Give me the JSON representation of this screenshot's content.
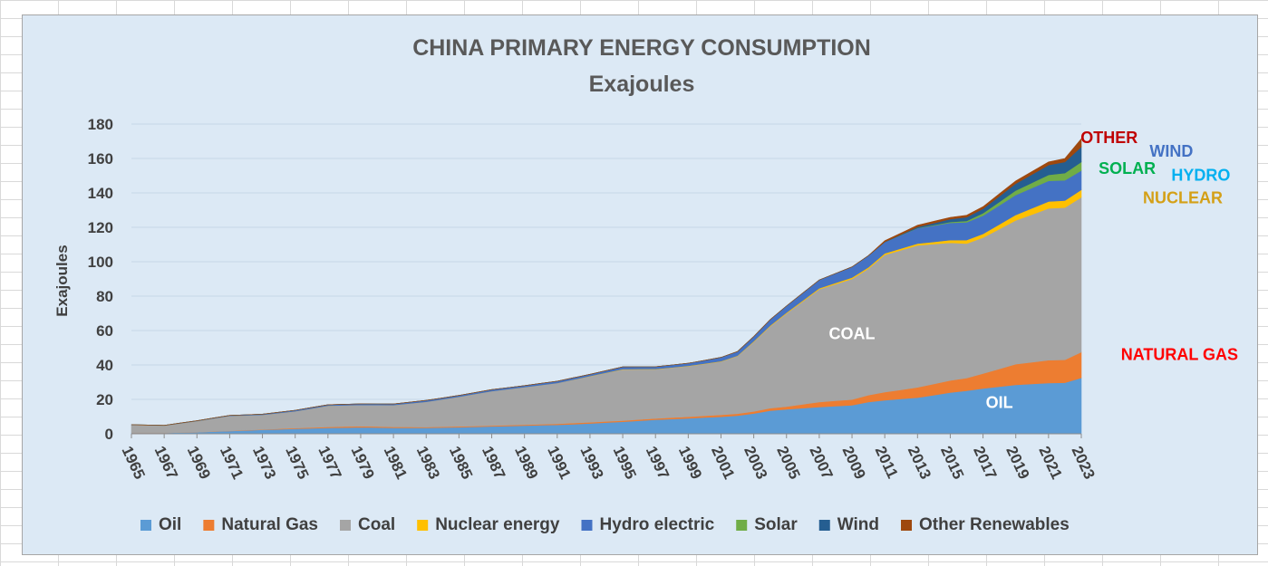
{
  "chart_data": {
    "type": "area",
    "stacked": true,
    "title": "CHINA PRIMARY ENERGY CONSUMPTION",
    "subtitle": "Exajoules",
    "xlabel": "",
    "ylabel": "Exajoules",
    "ylim": [
      0,
      180
    ],
    "yticks": [
      0,
      20,
      40,
      60,
      80,
      100,
      120,
      140,
      160,
      180
    ],
    "xlim": [
      1965,
      2023
    ],
    "xticks": [
      1965,
      1967,
      1969,
      1971,
      1973,
      1975,
      1977,
      1979,
      1981,
      1983,
      1985,
      1987,
      1989,
      1991,
      1993,
      1995,
      1997,
      1999,
      2001,
      2003,
      2005,
      2007,
      2009,
      2011,
      2013,
      2015,
      2017,
      2019,
      2021,
      2023
    ],
    "grid": "horizontal",
    "legend_position": "bottom",
    "series_cumulative_keys": [
      {
        "year": 1965,
        "c": [
          0.6,
          0.6,
          5.2,
          5.2,
          5.3,
          5.3,
          5.3,
          5.3
        ]
      },
      {
        "year": 1967,
        "c": [
          0.6,
          0.6,
          4.8,
          4.8,
          4.9,
          4.9,
          4.9,
          4.9
        ]
      },
      {
        "year": 1969,
        "c": [
          0.9,
          0.9,
          7.4,
          7.4,
          7.6,
          7.6,
          7.6,
          7.6
        ]
      },
      {
        "year": 1971,
        "c": [
          1.6,
          1.7,
          10.4,
          10.4,
          10.7,
          10.7,
          10.7,
          10.7
        ]
      },
      {
        "year": 1973,
        "c": [
          2.3,
          2.5,
          11.0,
          11.0,
          11.4,
          11.4,
          11.4,
          11.4
        ]
      },
      {
        "year": 1975,
        "c": [
          2.9,
          3.3,
          13.1,
          13.1,
          13.7,
          13.7,
          13.7,
          13.7
        ]
      },
      {
        "year": 1977,
        "c": [
          3.4,
          4.0,
          16.3,
          16.3,
          16.9,
          16.9,
          16.9,
          16.9
        ]
      },
      {
        "year": 1979,
        "c": [
          3.8,
          4.4,
          16.8,
          16.8,
          17.4,
          17.4,
          17.4,
          17.4
        ]
      },
      {
        "year": 1981,
        "c": [
          3.5,
          4.0,
          16.7,
          16.7,
          17.3,
          17.3,
          17.3,
          17.3
        ]
      },
      {
        "year": 1983,
        "c": [
          3.5,
          3.9,
          18.6,
          18.6,
          19.4,
          19.4,
          19.4,
          19.4
        ]
      },
      {
        "year": 1985,
        "c": [
          3.8,
          4.3,
          21.5,
          21.5,
          22.3,
          22.3,
          22.3,
          22.3
        ]
      },
      {
        "year": 1987,
        "c": [
          4.3,
          4.8,
          24.8,
          24.8,
          25.7,
          25.7,
          25.7,
          25.7
        ]
      },
      {
        "year": 1989,
        "c": [
          4.8,
          5.3,
          27.1,
          27.1,
          28.0,
          28.0,
          28.0,
          28.0
        ]
      },
      {
        "year": 1991,
        "c": [
          5.2,
          5.8,
          29.5,
          29.5,
          30.6,
          30.6,
          30.6,
          30.6
        ]
      },
      {
        "year": 1993,
        "c": [
          6.0,
          6.7,
          33.4,
          33.6,
          34.6,
          34.6,
          34.6,
          34.6
        ]
      },
      {
        "year": 1995,
        "c": [
          7.0,
          7.7,
          37.4,
          37.6,
          38.9,
          38.9,
          38.9,
          38.9
        ]
      },
      {
        "year": 1997,
        "c": [
          8.2,
          8.9,
          37.5,
          37.7,
          39.0,
          39.0,
          39.0,
          39.0
        ]
      },
      {
        "year": 1999,
        "c": [
          9.0,
          9.9,
          39.3,
          39.5,
          41.0,
          41.0,
          41.0,
          41.0
        ]
      },
      {
        "year": 2001,
        "c": [
          9.9,
          11.0,
          42.0,
          42.2,
          44.4,
          44.4,
          44.4,
          44.4
        ]
      },
      {
        "year": 2002,
        "c": [
          10.6,
          11.7,
          45.2,
          45.4,
          47.8,
          47.8,
          47.8,
          47.8
        ]
      },
      {
        "year": 2003,
        "c": [
          11.8,
          13.0,
          53.5,
          53.8,
          56.5,
          56.5,
          56.5,
          56.5
        ]
      },
      {
        "year": 2004,
        "c": [
          13.5,
          14.9,
          62.5,
          62.9,
          66.3,
          66.3,
          66.3,
          66.3
        ]
      },
      {
        "year": 2005,
        "c": [
          14.2,
          15.8,
          70.0,
          70.5,
          74.3,
          74.3,
          74.3,
          74.3
        ]
      },
      {
        "year": 2007,
        "c": [
          15.6,
          18.5,
          84.0,
          84.6,
          89.4,
          89.4,
          89.4,
          89.4
        ]
      },
      {
        "year": 2009,
        "c": [
          16.6,
          19.9,
          90.0,
          90.8,
          97.0,
          97.0,
          97.0,
          97.0
        ]
      },
      {
        "year": 2010,
        "c": [
          18.5,
          22.5,
          96.0,
          96.8,
          103.5,
          103.5,
          103.6,
          103.6
        ]
      },
      {
        "year": 2011,
        "c": [
          19.5,
          24.2,
          104.0,
          104.9,
          111.4,
          111.4,
          111.6,
          112.2
        ]
      },
      {
        "year": 2013,
        "c": [
          21.0,
          27.0,
          109.5,
          110.5,
          119.4,
          119.6,
          120.2,
          121.2
        ]
      },
      {
        "year": 2015,
        "c": [
          24.0,
          31.0,
          111.0,
          112.6,
          122.6,
          123.1,
          124.8,
          125.8
        ]
      },
      {
        "year": 2016,
        "c": [
          25.0,
          32.4,
          110.6,
          112.6,
          122.9,
          123.7,
          125.9,
          127.0
        ]
      },
      {
        "year": 2017,
        "c": [
          26.3,
          35.0,
          114.0,
          116.2,
          126.8,
          128.2,
          130.8,
          132.0
        ]
      },
      {
        "year": 2019,
        "c": [
          28.5,
          40.5,
          124.0,
          127.2,
          138.8,
          141.4,
          145.4,
          147.0
        ]
      },
      {
        "year": 2021,
        "c": [
          29.5,
          42.8,
          131.0,
          135.0,
          147.0,
          150.5,
          156.2,
          158.0
        ]
      },
      {
        "year": 2022,
        "c": [
          29.7,
          43.0,
          131.5,
          135.6,
          147.3,
          151.5,
          158.0,
          160.0
        ]
      },
      {
        "year": 2023,
        "c": [
          32.5,
          47.5,
          137.5,
          141.8,
          153.0,
          158.0,
          166.8,
          171.5
        ]
      }
    ],
    "series": [
      {
        "name": "Oil",
        "color": "#5b9bd5"
      },
      {
        "name": "Natural Gas",
        "color": "#ed7d31"
      },
      {
        "name": "Coal",
        "color": "#a5a5a5"
      },
      {
        "name": "Nuclear energy",
        "color": "#ffc000"
      },
      {
        "name": "Hydro electric",
        "color": "#4472c4"
      },
      {
        "name": "Solar",
        "color": "#70ad47"
      },
      {
        "name": "Wind",
        "color": "#255e91"
      },
      {
        "name": "Other Renewables",
        "color": "#9e480e"
      }
    ],
    "annotations": [
      {
        "text": "COAL",
        "color": "#ffffff",
        "at_year": 2009,
        "at_value": 55
      },
      {
        "text": "OIL",
        "color": "#ffffff",
        "at_year": 2018,
        "at_value": 15
      },
      {
        "text": "NATURAL GAS",
        "color": "#ff0000",
        "at_year": 2029,
        "at_value": 43
      },
      {
        "text": "OTHER",
        "color": "#c00000",
        "at_year": 2024.7,
        "at_value": 169
      },
      {
        "text": "WIND",
        "color": "#4472c4",
        "at_year": 2028.5,
        "at_value": 161
      },
      {
        "text": "SOLAR",
        "color": "#00b050",
        "at_year": 2025.8,
        "at_value": 151
      },
      {
        "text": "HYDRO",
        "color": "#00b0f0",
        "at_year": 2030.3,
        "at_value": 147
      },
      {
        "text": "NUCLEAR",
        "color": "#d4a017",
        "at_year": 2029.2,
        "at_value": 134
      }
    ]
  }
}
